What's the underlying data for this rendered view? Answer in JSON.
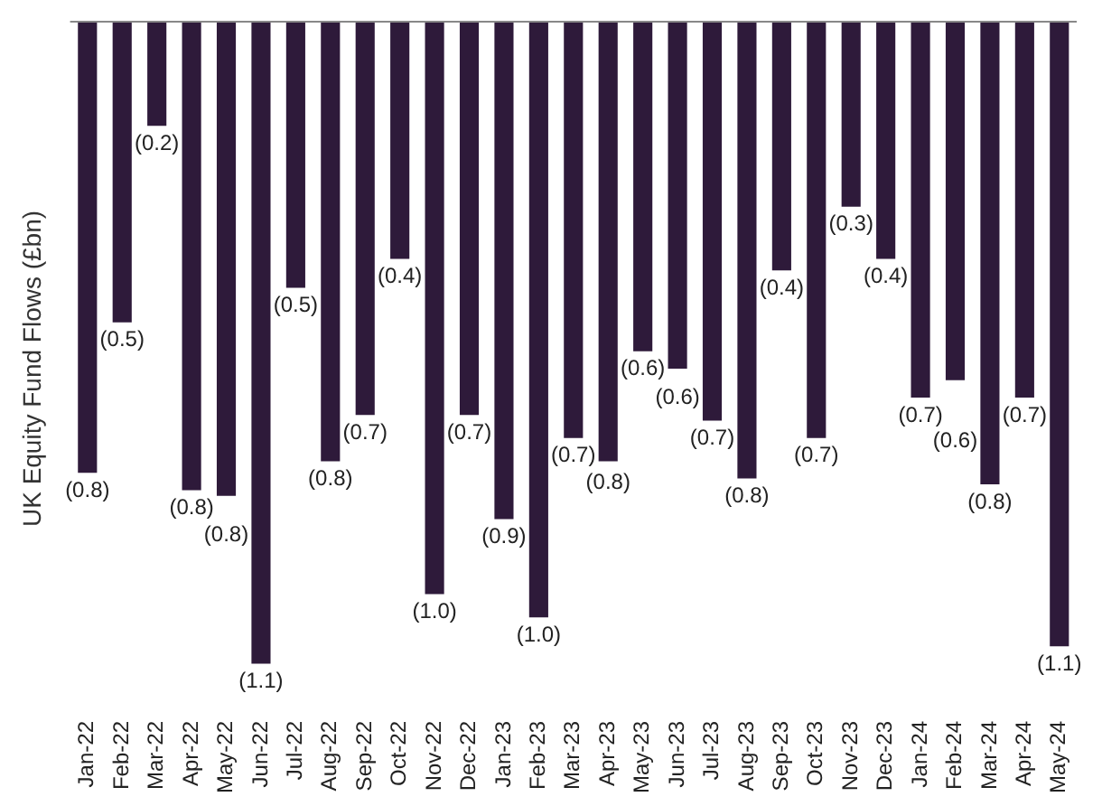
{
  "chart_data": {
    "type": "bar",
    "ylabel": "UK Equity Fund Flows (£bn)",
    "categories": [
      "Jan-22",
      "Feb-22",
      "Mar-22",
      "Apr-22",
      "May-22",
      "Jun-22",
      "Jul-22",
      "Aug-22",
      "Sep-22",
      "Oct-22",
      "Nov-22",
      "Dec-22",
      "Jan-23",
      "Feb-23",
      "Mar-23",
      "Apr-23",
      "May-23",
      "Jun-23",
      "Jul-23",
      "Aug-23",
      "Sep-23",
      "Oct-23",
      "Nov-23",
      "Dec-23",
      "Jan-24",
      "Feb-24",
      "Mar-24",
      "Apr-24",
      "May-24"
    ],
    "values": [
      -0.78,
      -0.52,
      -0.18,
      -0.81,
      -0.82,
      -1.11,
      -0.46,
      -0.76,
      -0.68,
      -0.41,
      -0.99,
      -0.68,
      -0.86,
      -1.03,
      -0.72,
      -0.76,
      -0.57,
      -0.6,
      -0.69,
      -0.79,
      -0.43,
      -0.72,
      -0.32,
      -0.41,
      -0.65,
      -0.62,
      -0.8,
      -0.65,
      -1.08
    ],
    "value_labels": [
      "(0.8)",
      "(0.5)",
      "(0.2)",
      "(0.8)",
      "(0.8)",
      "(1.1)",
      "(0.5)",
      "(0.8)",
      "(0.7)",
      "(0.4)",
      "(1.0)",
      "(0.7)",
      "(0.9)",
      "(1.0)",
      "(0.7)",
      "(0.8)",
      "(0.6)",
      "(0.6)",
      "(0.7)",
      "(0.8)",
      "(0.4)",
      "(0.7)",
      "(0.3)",
      "(0.4)",
      "(0.7)",
      "(0.6)",
      "(0.8)",
      "(0.7)",
      "(1.1)"
    ],
    "color": "#2e1a3a",
    "grid": false,
    "legend": false
  }
}
